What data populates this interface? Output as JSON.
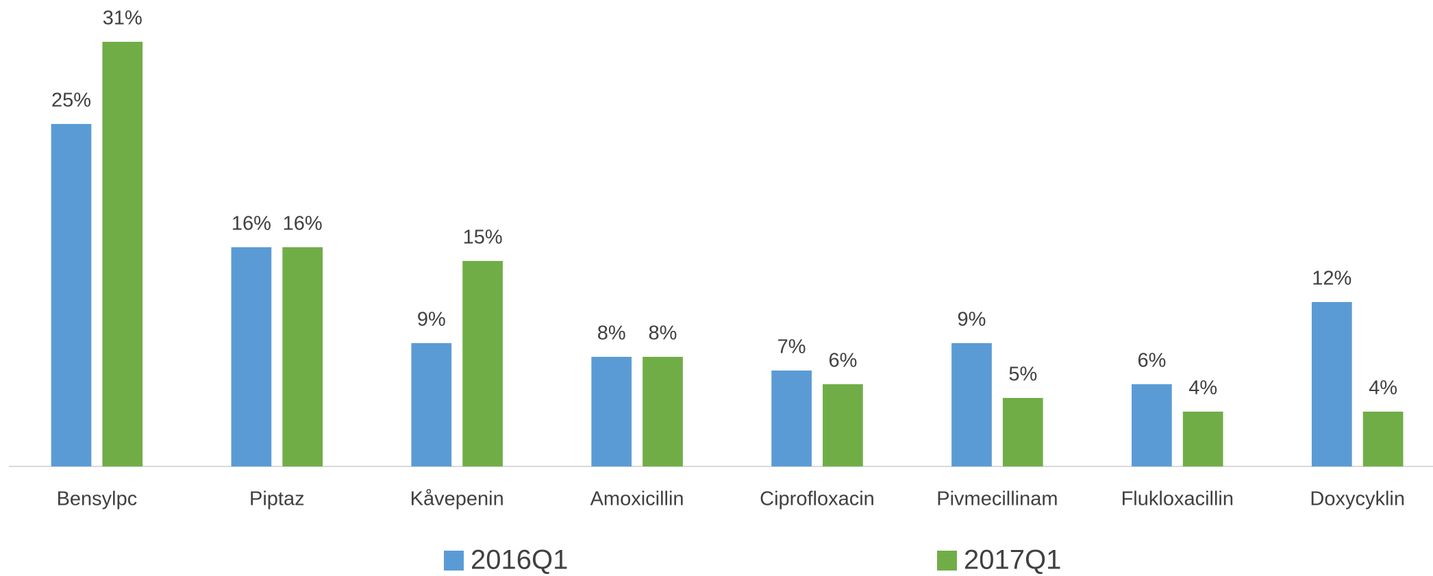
{
  "chart_data": {
    "type": "bar",
    "categories": [
      "Bensylpc",
      "Piptaz",
      "Kåvepenin",
      "Amoxicillin",
      "Ciprofloxacin",
      "Pivmecillinam",
      "Flukloxacillin",
      "Doxycyklin"
    ],
    "series": [
      {
        "name": "2016Q1",
        "color": "#5b9bd5",
        "values": [
          25,
          16,
          9,
          8,
          7,
          9,
          6,
          12
        ],
        "value_labels": [
          "25%",
          "16%",
          "9%",
          "8%",
          "7%",
          "9%",
          "6%",
          "12%"
        ]
      },
      {
        "name": "2017Q1",
        "color": "#70ad47",
        "values": [
          31,
          16,
          15,
          8,
          6,
          5,
          4,
          4
        ],
        "value_labels": [
          "31%",
          "16%",
          "15%",
          "8%",
          "6%",
          "5%",
          "4%",
          "4%"
        ]
      }
    ],
    "legend": "bottom"
  }
}
